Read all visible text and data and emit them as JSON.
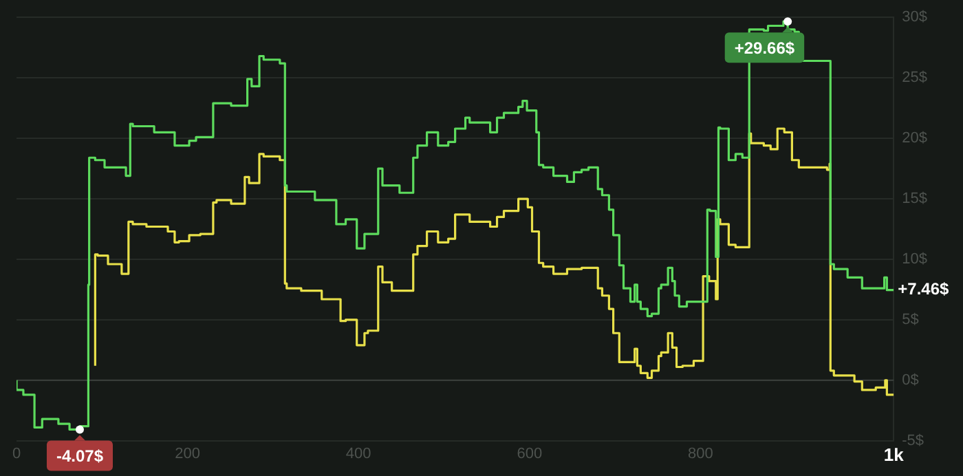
{
  "chart_data": {
    "type": "step",
    "xlim": [
      0,
      1026
    ],
    "xticks": [
      0,
      200,
      400,
      600,
      800,
      {
        "value": 1026,
        "label": "1k"
      }
    ],
    "ylim": [
      -5,
      30
    ],
    "yticks": [
      {
        "value": -5,
        "label": "-5$"
      },
      {
        "value": 0,
        "label": "0$"
      },
      {
        "value": 5,
        "label": "5$"
      },
      {
        "value": 10,
        "label": "10$"
      },
      {
        "value": 15,
        "label": "15$"
      },
      {
        "value": 20,
        "label": "20$"
      },
      {
        "value": 25,
        "label": "25$"
      },
      {
        "value": 30,
        "label": "30$"
      }
    ],
    "grid": "y",
    "legend": false,
    "marker": "none",
    "line_style": "solid",
    "ref_lines": [
      {
        "axis": "y",
        "value": 0,
        "color": "#3b403c"
      }
    ],
    "annotations": [
      {
        "text": "-4.07$",
        "x": 74,
        "y": -4.07
      },
      {
        "text": "+29.66$",
        "x": 902,
        "y": 29.66
      },
      {
        "text": "+7.46$",
        "x": 1026,
        "y": 7.46
      }
    ],
    "series": [
      {
        "color": "#5ddb5d",
        "x": [
          0,
          8,
          21,
          30,
          49,
          62,
          74,
          84,
          85,
          92,
          103,
          128,
          133,
          136,
          161,
          185,
          190,
          202,
          210,
          230,
          234,
          251,
          270,
          275,
          284,
          289,
          308,
          314,
          316,
          349,
          374,
          385,
          398,
          407,
          411,
          423,
          428,
          448,
          464,
          469,
          480,
          493,
          505,
          513,
          525,
          530,
          554,
          562,
          570,
          587,
          592,
          597,
          608,
          611,
          616,
          628,
          644,
          652,
          661,
          669,
          680,
          685,
          693,
          698,
          705,
          710,
          718,
          723,
          726,
          730,
          738,
          743,
          751,
          754,
          762,
          767,
          770,
          775,
          784,
          800,
          808,
          811,
          818,
          821,
          823,
          833,
          841,
          849,
          857,
          862,
          874,
          879,
          897,
          902,
          910,
          915,
          952,
          956,
          972,
          989,
          1015,
          1018,
          1026
        ],
        "values": [
          0,
          -0.8,
          -1.2,
          -3.9,
          -3.2,
          -3.6,
          -4.07,
          -3.8,
          7.9,
          18.4,
          18.2,
          17.6,
          16.9,
          21.2,
          21,
          20.5,
          19.4,
          19.4,
          19.8,
          20.1,
          22.9,
          22.9,
          22.7,
          24.9,
          24.3,
          26.8,
          26.5,
          26.2,
          16.1,
          15.6,
          14.9,
          12.9,
          13.3,
          10.9,
          12.1,
          12.1,
          17.5,
          16.1,
          15.5,
          18.4,
          19.4,
          20.5,
          19.4,
          19.7,
          20.8,
          21.7,
          21.3,
          20.5,
          21.7,
          22.1,
          22.6,
          23.1,
          22.3,
          20.5,
          17.8,
          17.6,
          16.9,
          16.4,
          17.2,
          17.4,
          17.6,
          15.8,
          15.3,
          14.1,
          12,
          9.5,
          7.6,
          6.5,
          7.9,
          6.5,
          5.9,
          5.3,
          5.5,
          7.6,
          7.9,
          9.3,
          8.2,
          7,
          6.1,
          6.5,
          6.5,
          14.1,
          14,
          10.2,
          20.9,
          20.8,
          18.2,
          18.7,
          18.4,
          29,
          29,
          28.9,
          29.3,
          29.66,
          29,
          28.8,
          26.4,
          9.6,
          9.2,
          8.5,
          7.6,
          8.5,
          7.46
        ]
      },
      {
        "color": "#e8e04a",
        "x": [
          92,
          95,
          107,
          123,
          131,
          136,
          152,
          177,
          185,
          190,
          202,
          215,
          230,
          234,
          251,
          267,
          272,
          284,
          289,
          308,
          314,
          316,
          333,
          357,
          379,
          385,
          398,
          407,
          411,
          423,
          428,
          439,
          464,
          469,
          480,
          493,
          505,
          513,
          525,
          530,
          554,
          562,
          570,
          587,
          598,
          603,
          611,
          616,
          628,
          644,
          661,
          680,
          685,
          693,
          698,
          705,
          713,
          723,
          726,
          730,
          738,
          743,
          751,
          754,
          762,
          767,
          772,
          779,
          792,
          803,
          810,
          818,
          820,
          823,
          833,
          841,
          849,
          857,
          859,
          874,
          882,
          890,
          898,
          907,
          915,
          948,
          951,
          952,
          956,
          980,
          989,
          1005,
          1016,
          1018,
          1026
        ],
        "values": [
          1.2,
          10.4,
          10.3,
          9.6,
          8.8,
          13.1,
          12.9,
          12.7,
          12.3,
          11.4,
          11.5,
          12,
          12.1,
          14.7,
          14.9,
          14.6,
          16.8,
          16.3,
          18.7,
          18.5,
          18.2,
          8,
          7.6,
          7.4,
          6.7,
          4.9,
          5,
          2.9,
          3.9,
          4.1,
          9.4,
          8.1,
          7.4,
          10.4,
          11.1,
          12.3,
          11.4,
          11.7,
          13.7,
          13.7,
          13.1,
          12.7,
          13.5,
          14,
          15,
          14.3,
          12.3,
          9.7,
          9.4,
          8.8,
          9.2,
          9.3,
          7.6,
          7,
          5.9,
          3.9,
          1.5,
          1.5,
          2.6,
          1.2,
          0.6,
          0.2,
          0.8,
          2,
          2.3,
          3.9,
          2.7,
          1.1,
          1.2,
          1.6,
          8.6,
          8.2,
          6.7,
          13.3,
          12.9,
          11.2,
          11,
          11,
          20.4,
          19.6,
          19.4,
          19.1,
          20.8,
          20.5,
          18.2,
          17.6,
          17.4,
          17.9,
          0.8,
          0.4,
          -0.1,
          -0.8,
          -0.6,
          0,
          -1.2
        ]
      }
    ]
  }
}
